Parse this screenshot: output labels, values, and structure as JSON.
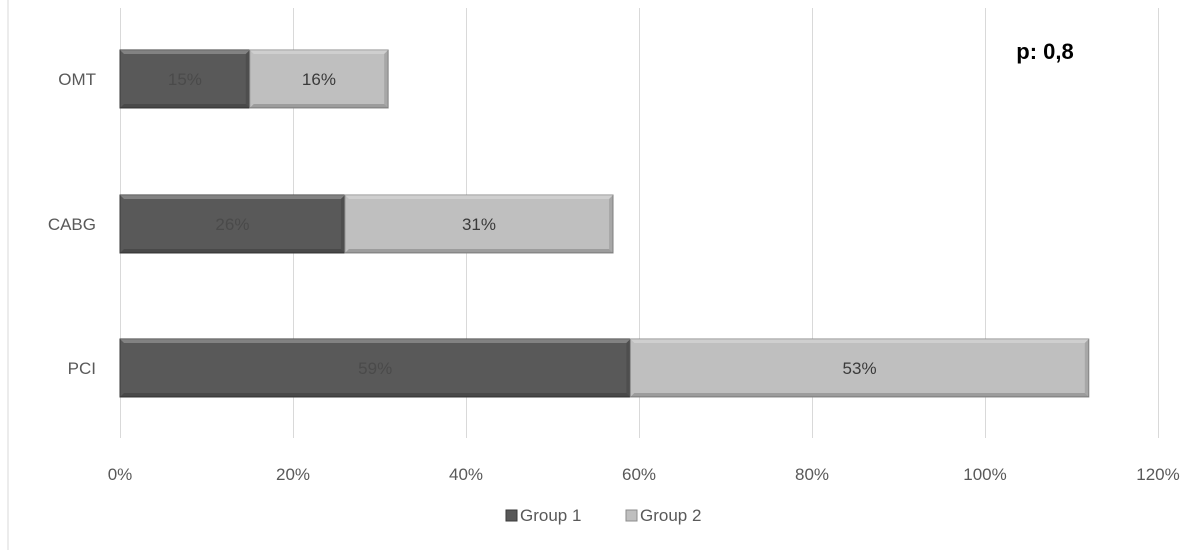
{
  "chart_data": {
    "type": "bar",
    "orientation": "horizontal",
    "stacked": true,
    "categories": [
      "OMT",
      "CABG",
      "PCI"
    ],
    "series": [
      {
        "name": "Group 1",
        "values": [
          15,
          26,
          59
        ],
        "labels": [
          "15%",
          "26%",
          "59%"
        ]
      },
      {
        "name": "Group 2",
        "values": [
          16,
          31,
          53
        ],
        "labels": [
          "16%",
          "31%",
          "53%"
        ]
      }
    ],
    "xlim": [
      0,
      120
    ],
    "xticks": [
      0,
      20,
      40,
      60,
      80,
      100,
      120
    ],
    "xtick_labels": [
      "0%",
      "20%",
      "40%",
      "60%",
      "80%",
      "100%",
      "120%"
    ],
    "grid": true,
    "legend_position": "bottom",
    "annotation": "p: 0,8",
    "colors": {
      "group1": "#595959",
      "group1_edge": "#3a3a3a",
      "group2": "#bfbfbf",
      "group2_edge": "#8c8c8c",
      "grid": "#d9d9d9"
    }
  }
}
